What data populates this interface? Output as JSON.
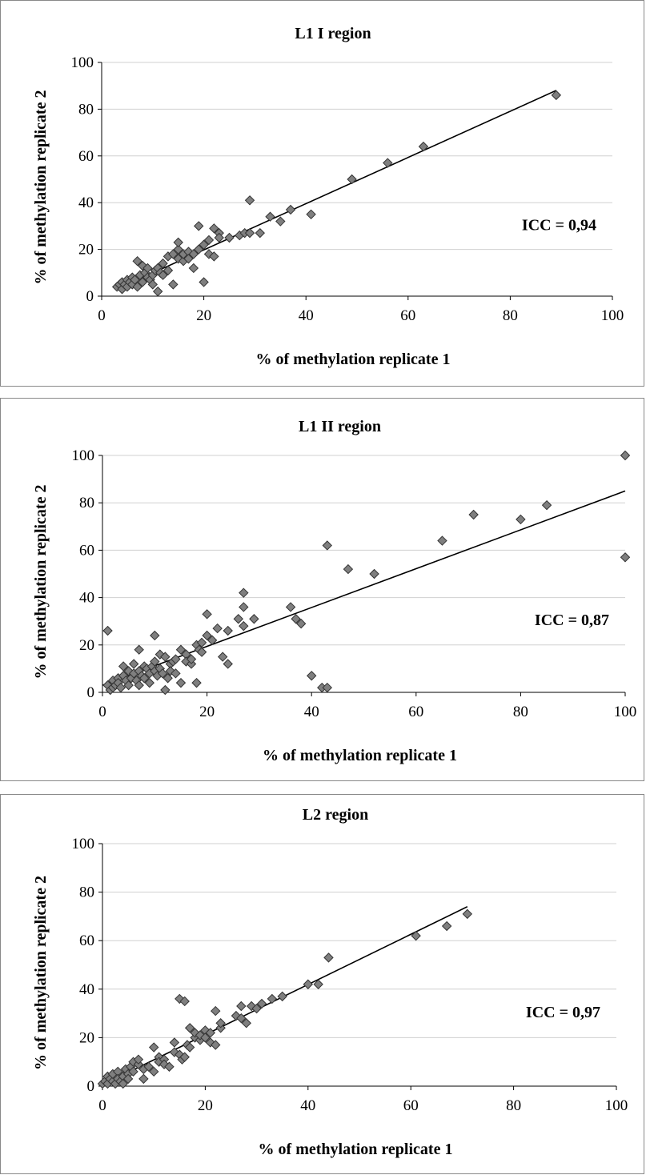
{
  "chart_data": [
    {
      "type": "scatter",
      "title": "L1 I region",
      "xlabel": "% of methylation replicate 1",
      "ylabel": "% of methylation replicate 2",
      "xlim": [
        0,
        100
      ],
      "ylim": [
        0,
        100
      ],
      "xticks": [
        "0",
        "20",
        "40",
        "60",
        "80",
        "100"
      ],
      "yticks": [
        "0",
        "20",
        "40",
        "60",
        "80",
        "100"
      ],
      "grid": "horizontal",
      "annotation": "ICC = 0,94",
      "trendline": {
        "x": [
          3,
          89
        ],
        "y": [
          3,
          88
        ]
      },
      "points": {
        "x": [
          3,
          3.5,
          4,
          4,
          4.5,
          5,
          5,
          5.5,
          6,
          6,
          6.5,
          7,
          7,
          7.5,
          8,
          8,
          8.5,
          9,
          9,
          9.5,
          10,
          10,
          10.5,
          11,
          11,
          11.5,
          12,
          12,
          13,
          13,
          14,
          14,
          15,
          15,
          15,
          16,
          16,
          17,
          17,
          18,
          18,
          19,
          19,
          20,
          20,
          21,
          21,
          22,
          22,
          23,
          23,
          25,
          27,
          28,
          29,
          29,
          31,
          33,
          35,
          37,
          41,
          49,
          56,
          63,
          89
        ],
        "y": [
          4,
          5,
          3,
          6,
          5,
          7,
          4,
          6,
          8,
          5,
          7,
          15,
          4,
          9,
          13,
          6,
          10,
          8,
          12,
          7,
          5,
          9,
          11,
          12,
          2,
          10,
          14,
          9,
          17,
          11,
          18,
          5,
          20,
          23,
          16,
          15,
          18,
          19,
          16,
          18,
          12,
          30,
          20,
          6,
          22,
          18,
          24,
          29,
          17,
          27,
          25,
          25,
          26,
          27,
          41,
          27,
          27,
          34,
          32,
          37,
          35,
          50,
          57,
          64,
          86
        ]
      }
    },
    {
      "type": "scatter",
      "title": "L1 II region",
      "xlabel": "% of methylation replicate 1",
      "ylabel": "% of methylation replicate 2",
      "xlim": [
        0,
        100
      ],
      "ylim": [
        0,
        100
      ],
      "xticks": [
        "0",
        "20",
        "40",
        "60",
        "80",
        "100"
      ],
      "yticks": [
        "0",
        "20",
        "40",
        "60",
        "80",
        "100"
      ],
      "grid": "horizontal",
      "annotation": "ICC = 0,87",
      "trendline": {
        "x": [
          0,
          100
        ],
        "y": [
          3,
          85
        ]
      },
      "points": {
        "x": [
          1,
          1,
          1.5,
          2,
          2,
          2.5,
          3,
          3,
          3.5,
          4,
          4,
          4.5,
          5,
          5,
          5.5,
          6,
          6,
          6.5,
          7,
          7,
          7,
          7.5,
          8,
          8,
          8.5,
          9,
          9,
          9.5,
          10,
          10,
          10,
          10.5,
          11,
          11,
          11.5,
          12,
          12,
          12.5,
          13,
          13,
          13.5,
          14,
          14,
          15,
          15,
          16,
          16,
          17,
          17,
          18,
          18,
          18.5,
          19,
          19,
          20,
          20,
          21,
          22,
          23,
          24,
          24,
          26,
          27,
          27,
          27,
          29,
          36,
          37,
          38,
          40,
          42,
          43,
          43,
          47,
          52,
          65,
          71,
          80,
          85,
          100,
          100
        ],
        "y": [
          26,
          3,
          1,
          5,
          2,
          3,
          6,
          4,
          2,
          11,
          7,
          5,
          9,
          3,
          6,
          12,
          8,
          5,
          18,
          9,
          3,
          7,
          11,
          6,
          10,
          8,
          4,
          11,
          24,
          13,
          9,
          7,
          16,
          10,
          8,
          15,
          1,
          6,
          12,
          9,
          13,
          14,
          8,
          18,
          4,
          16,
          13,
          12,
          14,
          20,
          4,
          18,
          21,
          17,
          33,
          24,
          22,
          27,
          15,
          12,
          26,
          31,
          42,
          36,
          28,
          31,
          36,
          31,
          29,
          7,
          2,
          62,
          2,
          52,
          50,
          64,
          75,
          73,
          79,
          100,
          57
        ]
      }
    },
    {
      "type": "scatter",
      "title": "L2 region",
      "xlabel": "% of methylation replicate 1",
      "ylabel": "% of methylation replicate 2",
      "xlim": [
        0,
        100
      ],
      "ylim": [
        0,
        100
      ],
      "xticks": [
        "0",
        "20",
        "40",
        "60",
        "80",
        "100"
      ],
      "yticks": [
        "0",
        "20",
        "40",
        "60",
        "80",
        "100"
      ],
      "grid": "horizontal",
      "annotation": "ICC = 0,97",
      "trendline": {
        "x": [
          0,
          71
        ],
        "y": [
          0.5,
          74
        ]
      },
      "points": {
        "x": [
          0,
          0.5,
          1,
          1,
          1.5,
          2,
          2,
          2.5,
          3,
          3,
          3.5,
          4,
          4,
          4.5,
          5,
          5,
          5.5,
          6,
          6,
          7,
          7,
          8,
          8,
          9,
          10,
          10,
          11,
          11,
          12,
          12,
          13,
          14,
          14,
          15,
          15,
          15.5,
          16,
          16,
          16.5,
          17,
          17,
          18,
          18,
          19,
          19,
          20,
          20,
          21,
          21,
          22,
          22,
          23,
          23,
          26,
          27,
          27,
          28,
          29,
          30,
          31,
          33,
          35,
          40,
          42,
          44,
          61,
          67,
          71
        ],
        "y": [
          1,
          2,
          4,
          1,
          3,
          2,
          5,
          1,
          6,
          3,
          2,
          4,
          1,
          7,
          5,
          3,
          8,
          6,
          10,
          9,
          11,
          3,
          7,
          8,
          16,
          6,
          12,
          10,
          11,
          9,
          8,
          14,
          18,
          13,
          36,
          11,
          35,
          12,
          17,
          16,
          24,
          20,
          22,
          19,
          21,
          23,
          20,
          18,
          22,
          31,
          17,
          24,
          26,
          29,
          28,
          33,
          26,
          33,
          32,
          34,
          36,
          37,
          42,
          42,
          53,
          62,
          66,
          71
        ]
      }
    }
  ]
}
